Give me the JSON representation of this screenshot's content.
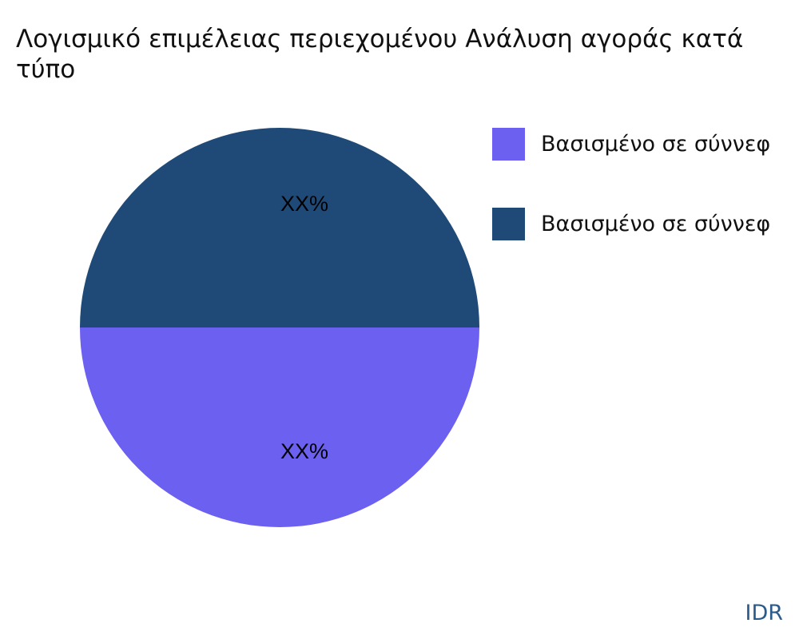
{
  "chart_data": {
    "type": "pie",
    "title": "Λογισμικό επιμέλειας περιεχομένου Ανάλυση αγοράς κατά τύπο",
    "slices": [
      {
        "name": "Βασισμένο σε σύννεφ",
        "value": 50,
        "label": "XX%",
        "color": "#6c60f0"
      },
      {
        "name": "Βασισμένο σε σύννεφ",
        "value": 50,
        "label": "XX%",
        "color": "#1f4a78"
      }
    ],
    "legend_position": "right"
  },
  "brand": "IDR"
}
